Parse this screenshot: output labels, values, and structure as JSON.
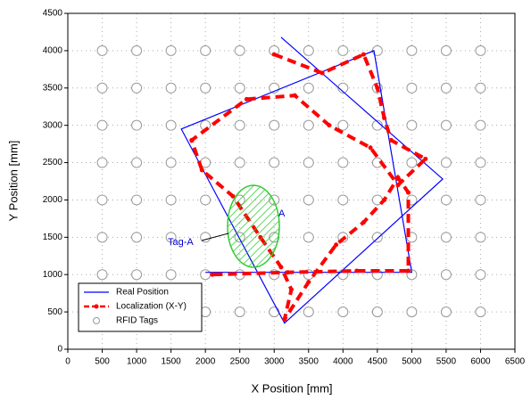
{
  "chart_data": {
    "type": "line",
    "xlabel": "X Position [mm]",
    "ylabel": "Y Position [mm]",
    "xlim": [
      0,
      6500
    ],
    "ylim": [
      0,
      4500
    ],
    "xticks": [
      0,
      500,
      1000,
      1500,
      2000,
      2500,
      3000,
      3500,
      4000,
      4500,
      5000,
      5500,
      6000,
      6500
    ],
    "yticks": [
      0,
      500,
      1000,
      1500,
      2000,
      2500,
      3000,
      3500,
      4000,
      4500
    ],
    "grid": true,
    "legend": "lower left",
    "annotations": [
      "Tag-A",
      "A"
    ],
    "series": [
      {
        "name": "Real Position",
        "color": "#0000ff",
        "type": "line",
        "x": [
          3100,
          5450,
          3150,
          1650,
          4450,
          5000,
          2000
        ],
        "y": [
          4180,
          2280,
          350,
          2950,
          4000,
          1030,
          1030
        ]
      },
      {
        "name": "Localization (X-Y)",
        "color": "#ff0000",
        "type": "dashed",
        "x": [
          3000,
          3700,
          4300,
          4500,
          4600,
          4700,
          5200,
          4800,
          4400,
          3800,
          3300,
          2600,
          1800,
          1950,
          2400,
          2800,
          3100,
          3250,
          3150,
          3500,
          3900,
          4300,
          4600,
          4800,
          4950,
          4950,
          4200,
          3200,
          2100
        ],
        "y": [
          3950,
          3700,
          3950,
          3500,
          3100,
          2800,
          2550,
          2200,
          2700,
          3000,
          3400,
          3350,
          2800,
          2400,
          2050,
          1500,
          1100,
          800,
          400,
          900,
          1400,
          1700,
          2000,
          2300,
          2100,
          1050,
          1050,
          1030,
          1000
        ]
      },
      {
        "name": "RFID Tags",
        "color": "#999999",
        "type": "scatter",
        "x": [
          500,
          1000,
          1500,
          2000,
          2500,
          3000,
          3500,
          4000,
          4500,
          5000,
          5500,
          6000,
          500,
          1000,
          1500,
          2000,
          2500,
          3000,
          3500,
          4000,
          4500,
          5000,
          5500,
          6000,
          500,
          1000,
          1500,
          2000,
          2500,
          3000,
          3500,
          4000,
          4500,
          5000,
          5500,
          6000,
          500,
          1000,
          1500,
          2000,
          2500,
          3000,
          3500,
          4000,
          4500,
          5000,
          5500,
          6000,
          500,
          1000,
          1500,
          2000,
          2500,
          3000,
          3500,
          4000,
          4500,
          5000,
          5500,
          6000,
          500,
          1000,
          1500,
          2000,
          2500,
          3000,
          3500,
          4000,
          4500,
          5000,
          5500,
          6000,
          500,
          1000,
          1500,
          2000,
          2500,
          3000,
          3500,
          4000,
          4500,
          5000,
          5500,
          6000,
          500,
          1000,
          1500,
          2000,
          2500,
          3000,
          3500,
          4000,
          4500,
          5000,
          5500,
          6000
        ],
        "y": [
          500,
          500,
          500,
          500,
          500,
          500,
          500,
          500,
          500,
          500,
          500,
          500,
          1000,
          1000,
          1000,
          1000,
          1000,
          1000,
          1000,
          1000,
          1000,
          1000,
          1000,
          1000,
          1500,
          1500,
          1500,
          1500,
          1500,
          1500,
          1500,
          1500,
          1500,
          1500,
          1500,
          1500,
          2000,
          2000,
          2000,
          2000,
          2000,
          2000,
          2000,
          2000,
          2000,
          2000,
          2000,
          2000,
          2500,
          2500,
          2500,
          2500,
          2500,
          2500,
          2500,
          2500,
          2500,
          2500,
          2500,
          2500,
          3000,
          3000,
          3000,
          3000,
          3000,
          3000,
          3000,
          3000,
          3000,
          3000,
          3000,
          3000,
          3500,
          3500,
          3500,
          3500,
          3500,
          3500,
          3500,
          3500,
          3500,
          3500,
          3500,
          3500,
          4000,
          4000,
          4000,
          4000,
          4000,
          4000,
          4000,
          4000,
          4000,
          4000,
          4000,
          4000
        ]
      }
    ]
  }
}
